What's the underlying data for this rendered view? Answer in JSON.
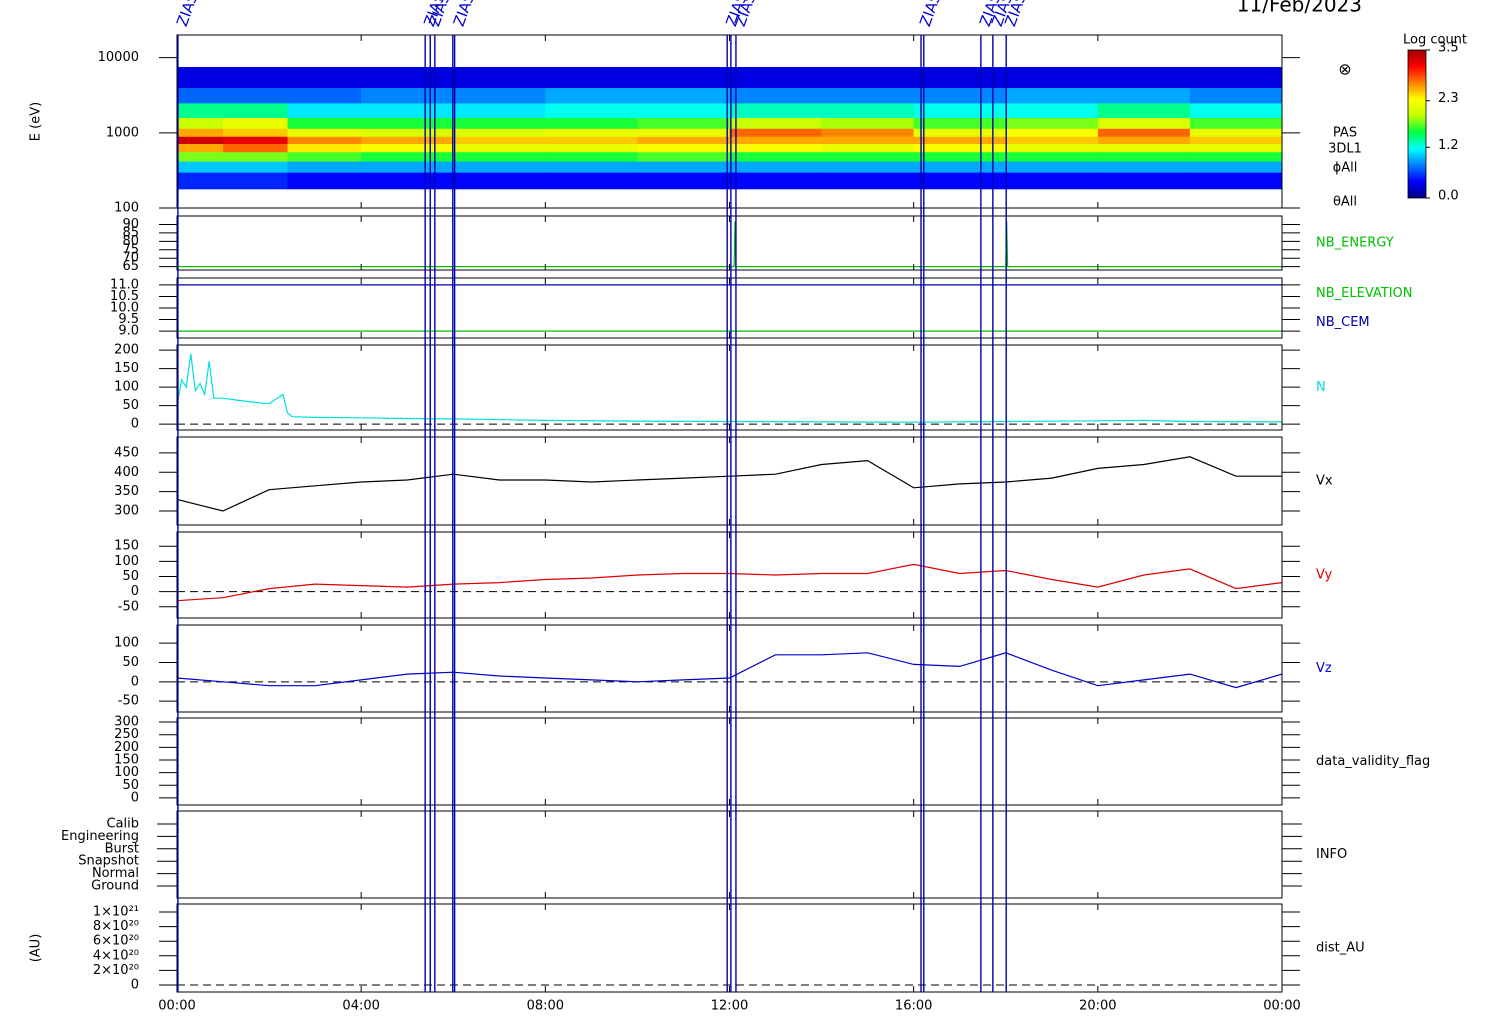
{
  "chart_data": [
    {
      "type": "heatmap",
      "title": "11/Feb/2023",
      "ylabel": "E (eV)",
      "ylog": true,
      "ylim": [
        100,
        20000
      ],
      "yticks": [
        100,
        1000,
        10000
      ],
      "x_edges": [
        0,
        1,
        2.4,
        4,
        6,
        8,
        10,
        12,
        14,
        16,
        18,
        20,
        22,
        24
      ],
      "y_edges": [
        180,
        300,
        420,
        560,
        720,
        900,
        1150,
        1600,
        2500,
        4000,
        7500
      ],
      "z": [
        [
          0.5,
          1.0,
          1.8,
          2.6,
          3.3,
          2.6,
          2.0,
          1.4,
          0.7,
          0.3
        ],
        [
          0.5,
          1.0,
          1.8,
          2.8,
          3.2,
          2.5,
          2.2,
          1.4,
          0.7,
          0.3
        ],
        [
          0.4,
          0.9,
          1.7,
          2.4,
          2.7,
          2.2,
          1.6,
          1.1,
          0.7,
          0.3
        ],
        [
          0.4,
          0.9,
          1.6,
          2.3,
          2.6,
          2.1,
          1.6,
          1.1,
          0.8,
          0.3
        ],
        [
          0.4,
          0.9,
          1.6,
          2.2,
          2.5,
          2.1,
          1.6,
          1.1,
          0.8,
          0.3
        ],
        [
          0.4,
          0.9,
          1.6,
          2.2,
          2.5,
          2.2,
          1.6,
          1.2,
          0.9,
          0.3
        ],
        [
          0.4,
          0.9,
          1.7,
          2.3,
          2.6,
          2.2,
          1.7,
          1.2,
          0.9,
          0.3
        ],
        [
          0.4,
          0.9,
          1.6,
          2.3,
          2.6,
          2.8,
          2.0,
          1.3,
          0.8,
          0.3
        ],
        [
          0.4,
          0.9,
          1.6,
          2.2,
          2.6,
          2.7,
          1.9,
          1.3,
          0.8,
          0.3
        ],
        [
          0.4,
          0.9,
          1.6,
          2.3,
          2.6,
          2.2,
          1.7,
          1.2,
          0.8,
          0.3
        ],
        [
          0.4,
          0.9,
          1.6,
          2.2,
          2.5,
          2.3,
          1.8,
          1.2,
          0.9,
          0.3
        ],
        [
          0.4,
          0.9,
          1.6,
          2.2,
          2.6,
          2.8,
          2.1,
          1.4,
          0.9,
          0.3
        ],
        [
          0.4,
          0.9,
          1.6,
          2.2,
          2.5,
          2.2,
          1.7,
          1.2,
          0.8,
          0.3
        ]
      ],
      "colormap": [
        "#000080",
        "#0000ff",
        "#0080ff",
        "#00ffff",
        "#00ff40",
        "#c0ff00",
        "#ffff00",
        "#ff8000",
        "#ff0000",
        "#a00000"
      ],
      "colorbar": {
        "title": "Log count",
        "lim": [
          0,
          3.5
        ],
        "ticks": [
          {
            "value": 0,
            "label": "0.0"
          },
          1.2,
          2.3,
          3.5
        ]
      },
      "symbol": "⊗",
      "side_labels": [
        "PAS",
        "3DL1",
        "ϕAll",
        "θAll"
      ],
      "events": [
        {
          "x": 0.02,
          "label": "ZIAS"
        },
        {
          "x": 5.39,
          "label": "ZIAS"
        },
        {
          "x": 5.5,
          "label": "ZIAS"
        },
        {
          "x": 5.6
        },
        {
          "x": 5.99
        },
        {
          "x": 6.03,
          "label": "ZIAS"
        },
        {
          "x": 11.95,
          "label": "ZIAS"
        },
        {
          "x": 12.03
        },
        {
          "x": 12.14,
          "label": "ZIAS"
        },
        {
          "x": 16.16,
          "label": "ZIAS"
        },
        {
          "x": 16.22
        },
        {
          "x": 17.46,
          "label": "ZIAS"
        },
        {
          "x": 17.72,
          "label": "ZIAS"
        },
        {
          "x": 18.01,
          "label": "ZIAS"
        }
      ]
    },
    {
      "type": "line",
      "ylim": [
        63,
        95
      ],
      "yticks": [
        65,
        70,
        75,
        80,
        85,
        90
      ],
      "series": [
        {
          "name": "NB_ENERGY",
          "color": "#00c000",
          "x": [
            0,
            12.1,
            12.12,
            12.14,
            18.0,
            18.02,
            18.04,
            24
          ],
          "values": [
            65,
            65,
            92,
            65,
            65,
            92,
            65,
            65
          ]
        }
      ]
    },
    {
      "type": "line",
      "ylim": [
        8.7,
        11.3
      ],
      "yticks": [
        {
          "value": 9,
          "label": "9.0"
        },
        9.5,
        {
          "value": 10,
          "label": "10.0"
        },
        10.5,
        {
          "value": 11,
          "label": "11.0"
        }
      ],
      "series": [
        {
          "name": "NB_ELEVATION",
          "color": "#00c000",
          "x": [
            0,
            24
          ],
          "values": [
            9,
            9
          ]
        },
        {
          "name": "NB_CEM",
          "color": "#0000aa",
          "x": [
            0,
            24
          ],
          "values": [
            11,
            11
          ]
        }
      ]
    },
    {
      "type": "line",
      "ylim": [
        -16,
        214
      ],
      "yticks": [
        0,
        50,
        100,
        150,
        200
      ],
      "zero_line": true,
      "series": [
        {
          "name": "N",
          "color": "#00e0e0",
          "x": [
            0,
            0.1,
            0.2,
            0.3,
            0.4,
            0.5,
            0.6,
            0.7,
            0.8,
            1.0,
            1.3,
            1.6,
            2.0,
            2.3,
            2.4,
            2.5,
            3,
            4,
            5,
            6,
            8,
            10,
            12,
            14,
            16,
            18,
            20,
            21,
            22,
            24
          ],
          "values": [
            50,
            120,
            100,
            190,
            90,
            110,
            80,
            170,
            70,
            70,
            65,
            60,
            55,
            80,
            30,
            20,
            18,
            17,
            15,
            14,
            10,
            8,
            7,
            6,
            5,
            7,
            9,
            10,
            7,
            6
          ]
        }
      ]
    },
    {
      "type": "line",
      "ylim": [
        264,
        491
      ],
      "yticks": [
        300,
        350,
        400,
        450
      ],
      "series": [
        {
          "name": "Vx",
          "color": "#000000",
          "x": [
            0,
            1,
            2,
            3,
            4,
            5,
            6,
            7,
            8,
            9,
            10,
            11,
            12,
            13,
            14,
            15,
            16,
            17,
            18,
            19,
            20,
            21,
            22,
            23,
            24
          ],
          "values": [
            330,
            300,
            355,
            365,
            375,
            380,
            395,
            380,
            380,
            375,
            380,
            385,
            390,
            395,
            420,
            430,
            360,
            370,
            375,
            385,
            410,
            420,
            440,
            390,
            390
          ]
        }
      ]
    },
    {
      "type": "line",
      "ylim": [
        -87,
        197
      ],
      "yticks": [
        -50,
        0,
        50,
        100,
        150
      ],
      "zero_line": true,
      "series": [
        {
          "name": "Vy",
          "color": "#e00000",
          "x": [
            0,
            1,
            2,
            3,
            4,
            5,
            6,
            7,
            8,
            9,
            10,
            11,
            12,
            13,
            14,
            15,
            16,
            17,
            18,
            19,
            20,
            21,
            22,
            23,
            24
          ],
          "values": [
            -30,
            -20,
            10,
            25,
            20,
            15,
            25,
            30,
            40,
            45,
            55,
            60,
            60,
            55,
            60,
            60,
            90,
            60,
            70,
            40,
            15,
            55,
            75,
            10,
            30
          ]
        }
      ]
    },
    {
      "type": "line",
      "ylim": [
        -78,
        147
      ],
      "yticks": [
        -50,
        0,
        50,
        100
      ],
      "zero_line": true,
      "series": [
        {
          "name": "Vz",
          "color": "#0000cc",
          "x": [
            0,
            1,
            2,
            3,
            4,
            5,
            6,
            7,
            8,
            9,
            10,
            11,
            12,
            13,
            14,
            15,
            16,
            17,
            18,
            19,
            20,
            21,
            22,
            23,
            24
          ],
          "values": [
            10,
            0,
            -10,
            -10,
            5,
            20,
            25,
            15,
            10,
            5,
            0,
            5,
            10,
            70,
            70,
            75,
            45,
            40,
            75,
            30,
            -10,
            5,
            20,
            -15,
            20
          ]
        }
      ]
    },
    {
      "type": "line",
      "ylim": [
        -28,
        316
      ],
      "yticks": [
        0,
        50,
        100,
        150,
        200,
        250,
        300
      ],
      "series": [
        {
          "name": "data_validity_flag",
          "color": "#000000",
          "x": [],
          "values": []
        }
      ]
    },
    {
      "type": "category",
      "categories": [
        "Calib",
        "Engineering",
        "Burst",
        "Snapshot",
        "Normal",
        "Ground"
      ],
      "series": [
        {
          "name": "INFO",
          "color": "#000000",
          "x": [],
          "values": []
        }
      ]
    },
    {
      "type": "line",
      "ylabel": "(AU)",
      "ylim": [
        -96000000000000000000,
        1110000000000000000000
      ],
      "zero_line": true,
      "yticks": [
        0,
        {
          "value": 200000000000000000000,
          "label": "2×10²⁰"
        },
        {
          "value": 400000000000000000000,
          "label": "4×10²⁰"
        },
        {
          "value": 600000000000000000000,
          "label": "6×10²⁰"
        },
        {
          "value": 800000000000000000000,
          "label": "8×10²⁰"
        },
        {
          "value": 1000000000000000000000,
          "label": "1×10²¹"
        }
      ],
      "series": [
        {
          "name": "dist_AU",
          "color": "#000000",
          "x": [],
          "values": []
        }
      ],
      "xlim": [
        0,
        24
      ],
      "xticks": [
        {
          "value": 0,
          "label": "00:00"
        },
        {
          "value": 4,
          "label": "04:00"
        },
        {
          "value": 8,
          "label": "08:00"
        },
        {
          "value": 12,
          "label": "12:00"
        },
        {
          "value": 16,
          "label": "16:00"
        },
        {
          "value": 20,
          "label": "20:00"
        },
        {
          "value": 24,
          "label": "00:00"
        }
      ]
    }
  ]
}
